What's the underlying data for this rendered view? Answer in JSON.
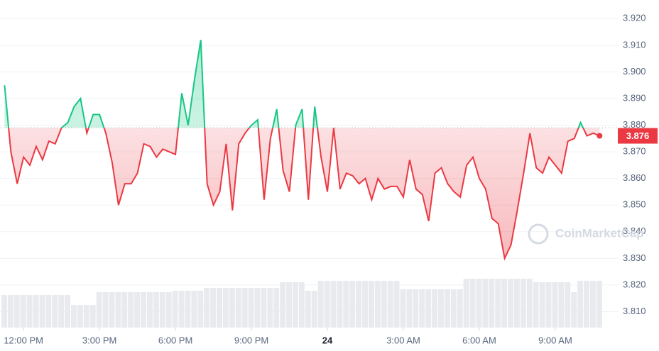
{
  "chart_data": {
    "type": "line",
    "x": [
      11.25,
      11.5,
      11.75,
      12,
      12.25,
      12.5,
      12.75,
      13,
      13.25,
      13.5,
      13.75,
      14,
      14.25,
      14.5,
      14.75,
      15,
      15.25,
      15.5,
      15.75,
      16,
      16.25,
      16.5,
      16.75,
      17,
      17.25,
      17.5,
      17.75,
      18,
      18.25,
      18.5,
      18.75,
      19,
      19.25,
      19.5,
      19.75,
      20,
      20.25,
      20.5,
      20.75,
      21,
      21.25,
      21.5,
      21.75,
      22,
      22.25,
      22.5,
      22.75,
      23,
      23.25,
      23.5,
      23.75,
      24,
      24.25,
      24.5,
      24.75,
      25,
      25.25,
      25.5,
      25.75,
      26,
      26.25,
      26.5,
      26.75,
      27,
      27.25,
      27.5,
      27.75,
      28,
      28.25,
      28.5,
      28.75,
      29,
      29.25,
      29.5,
      29.75,
      30,
      30.25,
      30.5,
      30.75,
      31,
      31.25,
      31.5,
      31.75,
      32,
      32.25,
      32.5,
      32.75,
      33,
      33.25,
      33.5,
      33.75,
      34,
      34.25,
      34.5,
      34.75
    ],
    "series": [
      {
        "name": "Price",
        "color": "#ea3943",
        "color_up": "#16c784",
        "values": [
          3.895,
          3.87,
          3.858,
          3.868,
          3.865,
          3.872,
          3.867,
          3.874,
          3.873,
          3.879,
          3.881,
          3.887,
          3.89,
          3.877,
          3.884,
          3.884,
          3.877,
          3.866,
          3.85,
          3.858,
          3.858,
          3.862,
          3.873,
          3.872,
          3.868,
          3.871,
          3.87,
          3.869,
          3.892,
          3.88,
          3.897,
          3.912,
          3.858,
          3.85,
          3.855,
          3.873,
          3.848,
          3.873,
          3.877,
          3.88,
          3.882,
          3.852,
          3.875,
          3.886,
          3.863,
          3.855,
          3.88,
          3.886,
          3.852,
          3.887,
          3.868,
          3.855,
          3.879,
          3.856,
          3.862,
          3.861,
          3.858,
          3.86,
          3.852,
          3.86,
          3.856,
          3.857,
          3.857,
          3.853,
          3.867,
          3.856,
          3.854,
          3.844,
          3.862,
          3.864,
          3.858,
          3.855,
          3.853,
          3.865,
          3.868,
          3.86,
          3.856,
          3.845,
          3.843,
          3.83,
          3.835,
          3.848,
          3.862,
          3.877,
          3.864,
          3.862,
          3.868,
          3.865,
          3.862,
          3.874,
          3.875,
          3.881,
          3.876,
          3.877,
          3.876
        ]
      },
      {
        "name": "Volume",
        "color": "#e8eaee",
        "axis": "y2",
        "values": [
          46,
          46,
          46,
          46,
          46,
          46,
          46,
          46,
          46,
          46,
          46,
          32,
          32,
          32,
          32,
          50,
          50,
          50,
          50,
          50,
          50,
          50,
          50,
          50,
          50,
          50,
          50,
          52,
          52,
          52,
          52,
          52,
          56,
          56,
          56,
          56,
          56,
          56,
          56,
          56,
          56,
          56,
          56,
          56,
          64,
          64,
          64,
          64,
          52,
          52,
          66,
          66,
          66,
          66,
          66,
          66,
          66,
          66,
          66,
          66,
          66,
          66,
          66,
          54,
          54,
          54,
          54,
          54,
          54,
          54,
          54,
          54,
          54,
          69,
          69,
          69,
          69,
          69,
          69,
          69,
          69,
          69,
          69,
          69,
          64,
          64,
          64,
          64,
          64,
          64,
          50,
          66,
          66,
          66,
          66
        ]
      }
    ],
    "baseline": 3.879,
    "current_price": 3.876,
    "watermark": "CoinMarketCap",
    "xlim": [
      11.07,
      35.47
    ],
    "xticks": [
      {
        "value": 12,
        "label": "12:00 PM"
      },
      {
        "value": 15,
        "label": "3:00 PM"
      },
      {
        "value": 18,
        "label": "6:00 PM"
      },
      {
        "value": 21,
        "label": "9:00 PM"
      },
      {
        "value": 24,
        "label": "24"
      },
      {
        "value": 27,
        "label": "3:00 AM"
      },
      {
        "value": 30,
        "label": "6:00 AM"
      },
      {
        "value": 33,
        "label": "9:00 AM"
      }
    ],
    "ylim": [
      3.804,
      3.927
    ],
    "yticks": [
      {
        "value": 3.92,
        "label": "3.920"
      },
      {
        "value": 3.91,
        "label": "3.910"
      },
      {
        "value": 3.9,
        "label": "3.900"
      },
      {
        "value": 3.89,
        "label": "3.890"
      },
      {
        "value": 3.88,
        "label": "3.880"
      },
      {
        "value": 3.87,
        "label": "3.870"
      },
      {
        "value": 3.86,
        "label": "3.860"
      },
      {
        "value": 3.85,
        "label": "3.850"
      },
      {
        "value": 3.84,
        "label": "3.840"
      },
      {
        "value": 3.83,
        "label": "3.830"
      },
      {
        "value": 3.82,
        "label": "3.820"
      },
      {
        "value": 3.81,
        "label": "3.810"
      }
    ],
    "y2lim": [
      0,
      100
    ],
    "grid": true
  }
}
